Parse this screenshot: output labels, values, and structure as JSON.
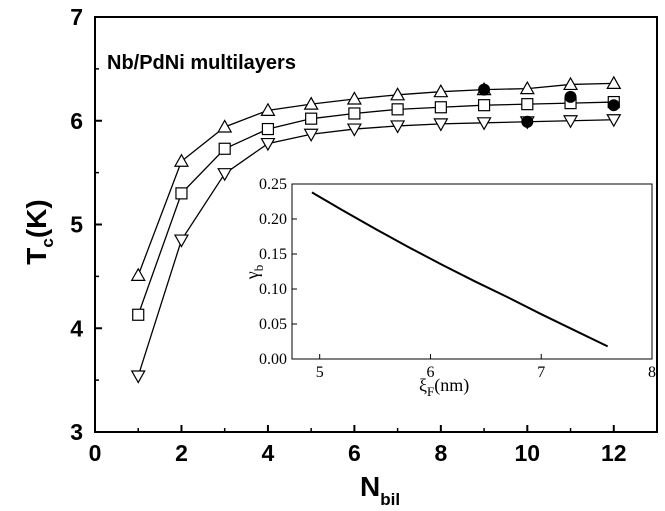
{
  "chart_data": [
    {
      "type": "line",
      "title": "Nb/PdNi multilayers",
      "xlabel": {
        "main": "N",
        "sub": "bil"
      },
      "ylabel": {
        "main": "T",
        "sub": "c",
        "suffix": "(K)"
      },
      "xlim": [
        0,
        13
      ],
      "ylim": [
        3,
        7
      ],
      "xticks": [
        0,
        2,
        4,
        6,
        8,
        10,
        12
      ],
      "yticks": [
        3,
        4,
        5,
        6,
        7
      ],
      "grid": false,
      "series": [
        {
          "marker": "triangle-up",
          "x": [
            1,
            2,
            3,
            4,
            5,
            6,
            7,
            8,
            9,
            10,
            11,
            12
          ],
          "y": [
            4.51,
            5.61,
            5.94,
            6.1,
            6.16,
            6.21,
            6.25,
            6.28,
            6.3,
            6.31,
            6.35,
            6.36
          ]
        },
        {
          "marker": "square",
          "x": [
            1,
            2,
            3,
            4,
            5,
            6,
            7,
            8,
            9,
            10,
            11,
            12
          ],
          "y": [
            4.13,
            5.3,
            5.73,
            5.92,
            6.02,
            6.07,
            6.11,
            6.13,
            6.15,
            6.16,
            6.17,
            6.18
          ]
        },
        {
          "marker": "triangle-down",
          "x": [
            1,
            2,
            3,
            4,
            5,
            6,
            7,
            8,
            9,
            10,
            11,
            12
          ],
          "y": [
            3.54,
            4.85,
            5.49,
            5.78,
            5.87,
            5.92,
            5.95,
            5.97,
            5.98,
            5.99,
            6.0,
            6.01
          ]
        },
        {
          "marker": "filled-circle",
          "line": false,
          "x": [
            9,
            10,
            11,
            12
          ],
          "y": [
            6.3,
            5.99,
            6.23,
            6.15
          ]
        }
      ]
    },
    {
      "type": "line",
      "position": "inset",
      "xlabel": {
        "main": "ξ",
        "sub": "F",
        "suffix": "(nm)"
      },
      "ylabel": {
        "main": "γ",
        "sub": "b"
      },
      "xlim": [
        4.75,
        8
      ],
      "ylim": [
        0,
        0.25
      ],
      "xticks": [
        5,
        6,
        7,
        8
      ],
      "yticks": [
        "0.00",
        "0.05",
        "0.10",
        "0.15",
        "0.20",
        "0.25"
      ],
      "series": [
        {
          "x": [
            4.93,
            5.2,
            5.5,
            5.8,
            6.1,
            6.4,
            6.7,
            7.0,
            7.3,
            7.6
          ],
          "y": [
            0.238,
            0.213,
            0.186,
            0.16,
            0.135,
            0.111,
            0.088,
            0.064,
            0.041,
            0.018
          ]
        }
      ]
    }
  ]
}
